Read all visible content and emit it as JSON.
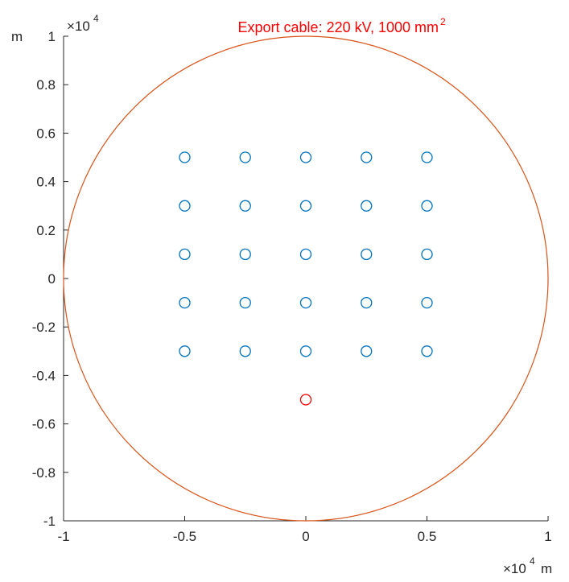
{
  "chart_data": {
    "type": "scatter",
    "title": "Export cable: 220 kV, 1000 mm",
    "title_superscript": "2",
    "title_color": "#ff0000",
    "xlabel": "m",
    "ylabel": "m",
    "x_multiplier_base": "×10",
    "x_multiplier_power": "4",
    "y_multiplier_base": "×10",
    "y_multiplier_power": "4",
    "xlim": [
      -10000,
      10000
    ],
    "ylim": [
      -10000,
      10000
    ],
    "x_ticks": [
      -10000,
      -5000,
      0,
      5000,
      10000
    ],
    "x_tick_labels": [
      "-1",
      "-0.5",
      "0",
      "0.5",
      "1"
    ],
    "y_ticks": [
      -10000,
      -8000,
      -6000,
      -4000,
      -2000,
      0,
      2000,
      4000,
      6000,
      8000,
      10000
    ],
    "y_tick_labels": [
      "-1",
      "-0.8",
      "-0.6",
      "-0.4",
      "-0.2",
      "0",
      "0.2",
      "0.4",
      "0.6",
      "0.8",
      "1"
    ],
    "grid": false,
    "boundary_circle": {
      "center": [
        0,
        0
      ],
      "radius": 10000,
      "color": "#d95319"
    },
    "series": [
      {
        "color": "#0072bd",
        "marker": "circle",
        "points": [
          [
            -5000,
            5000
          ],
          [
            -2500,
            5000
          ],
          [
            0,
            5000
          ],
          [
            2500,
            5000
          ],
          [
            5000,
            5000
          ],
          [
            -5000,
            3000
          ],
          [
            -2500,
            3000
          ],
          [
            0,
            3000
          ],
          [
            2500,
            3000
          ],
          [
            5000,
            3000
          ],
          [
            -5000,
            1000
          ],
          [
            -2500,
            1000
          ],
          [
            0,
            1000
          ],
          [
            2500,
            1000
          ],
          [
            5000,
            1000
          ],
          [
            -5000,
            -1000
          ],
          [
            -2500,
            -1000
          ],
          [
            0,
            -1000
          ],
          [
            2500,
            -1000
          ],
          [
            5000,
            -1000
          ],
          [
            -5000,
            -3000
          ],
          [
            -2500,
            -3000
          ],
          [
            0,
            -3000
          ],
          [
            2500,
            -3000
          ],
          [
            5000,
            -3000
          ]
        ]
      },
      {
        "color": "#ff0000",
        "marker": "circle",
        "points": [
          [
            0,
            -5000
          ]
        ]
      }
    ]
  }
}
